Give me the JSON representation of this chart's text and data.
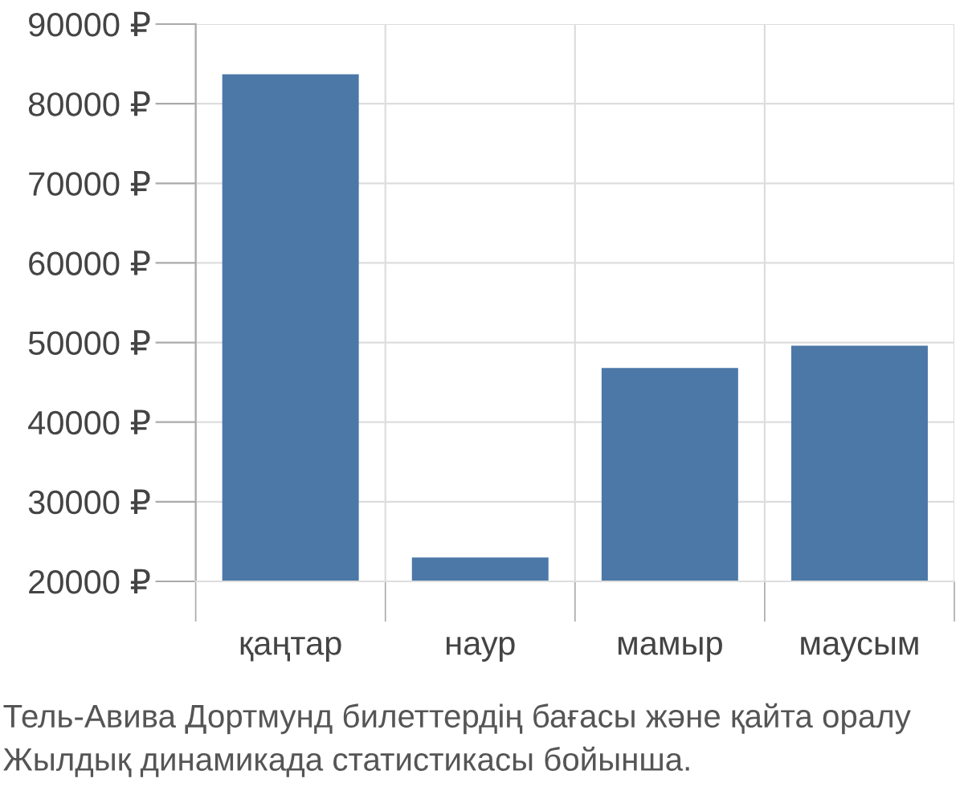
{
  "chart_data": {
    "type": "bar",
    "categories": [
      "қаңтар",
      "наур",
      "мамыр",
      "маусым"
    ],
    "values": [
      83700,
      23000,
      46800,
      49600
    ],
    "color": "#4c78a8",
    "ylim": [
      20000,
      90000
    ],
    "yticks": [
      {
        "value": 20000,
        "label": "20000 ₽"
      },
      {
        "value": 30000,
        "label": "30000 ₽"
      },
      {
        "value": 40000,
        "label": "40000 ₽"
      },
      {
        "value": 50000,
        "label": "50000 ₽"
      },
      {
        "value": 60000,
        "label": "60000 ₽"
      },
      {
        "value": 70000,
        "label": "70000 ₽"
      },
      {
        "value": 80000,
        "label": "80000 ₽"
      },
      {
        "value": 90000,
        "label": "90000 ₽"
      }
    ],
    "grid": true,
    "annotations": [
      "Тель-Авива Дортмунд билеттердің бағасы және қайта оралу",
      "Жылдық динамикада статистикасы бойынша."
    ]
  }
}
